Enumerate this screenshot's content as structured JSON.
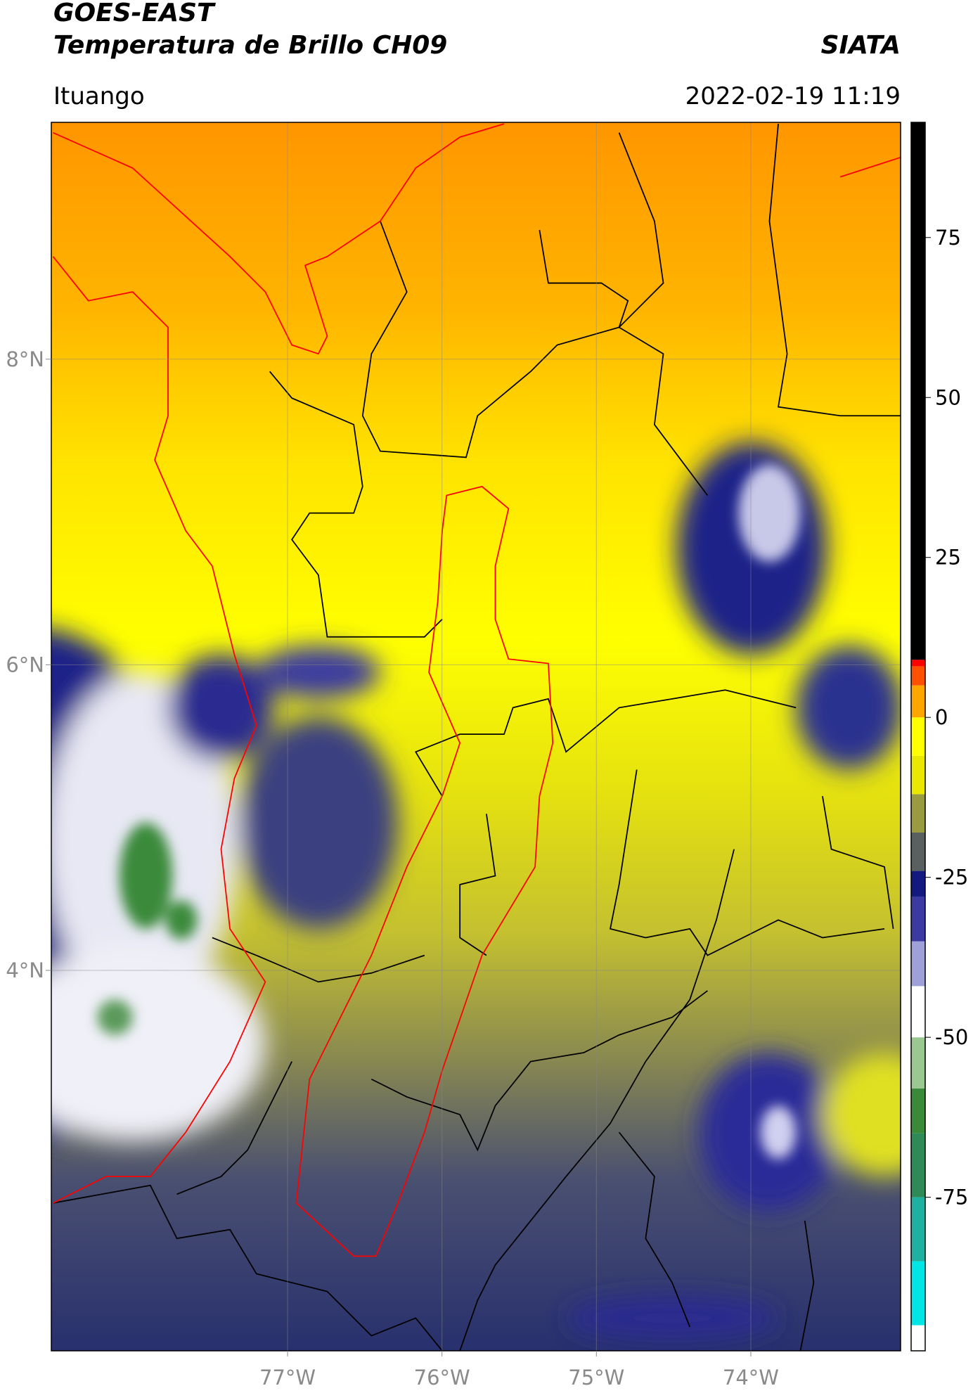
{
  "chart_data": {
    "type": "map",
    "title": "GOES-EAST",
    "subtitle": "Temperatura de Brillo CH09",
    "source": "SIATA",
    "location": "Ituango",
    "datetime": "2022-02-19 11:19",
    "xlim": [
      -78.53,
      -73.03
    ],
    "ylim": [
      1.51,
      9.55
    ],
    "xticks": [
      {
        "value": -77,
        "label": "77°W"
      },
      {
        "value": -76,
        "label": "76°W"
      },
      {
        "value": -75,
        "label": "75°W"
      },
      {
        "value": -74,
        "label": "74°W"
      }
    ],
    "yticks": [
      {
        "value": 8,
        "label": "8°N"
      },
      {
        "value": 6,
        "label": "6°N"
      },
      {
        "value": 4,
        "label": "4°N"
      }
    ],
    "grid": true,
    "colorbar": {
      "lim": [
        -99,
        93
      ],
      "ticks": [
        75,
        50,
        25,
        0,
        -25,
        -50,
        -75
      ],
      "colormap": [
        {
          "value": -99,
          "color": "#ffffff"
        },
        {
          "value": -95,
          "color": "#00e5e5"
        },
        {
          "value": -85,
          "color": "#20b0a0"
        },
        {
          "value": -75,
          "color": "#2e8b57"
        },
        {
          "value": -65,
          "color": "#3a8a3a"
        },
        {
          "value": -58,
          "color": "#9ac890"
        },
        {
          "value": -50,
          "color": "#ffffff"
        },
        {
          "value": -42,
          "color": "#a0a0d8"
        },
        {
          "value": -35,
          "color": "#3a3aa0"
        },
        {
          "value": -28,
          "color": "#121a80"
        },
        {
          "value": -24,
          "color": "#5a6060"
        },
        {
          "value": -18,
          "color": "#9a9a40"
        },
        {
          "value": -12,
          "color": "#e8e800"
        },
        {
          "value": -6,
          "color": "#ffff00"
        },
        {
          "value": 0,
          "color": "#ffa500"
        },
        {
          "value": 5,
          "color": "#ff5000"
        },
        {
          "value": 8,
          "color": "#ff0000"
        },
        {
          "value": 9,
          "color": "#000000"
        },
        {
          "value": 93,
          "color": "#000000"
        }
      ]
    }
  }
}
